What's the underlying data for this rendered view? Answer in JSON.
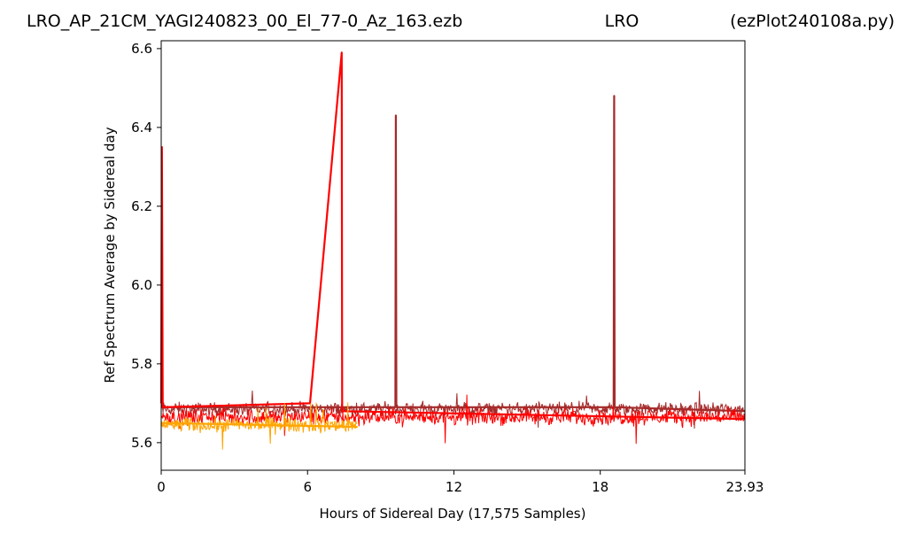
{
  "header": {
    "file_name": "LRO_AP_21CM_YAGI240823_00_El_77-0_Az_163.ezb",
    "station": "LRO",
    "program": "(ezPlot240108a.py)"
  },
  "chart_data": {
    "type": "line",
    "xlabel": "Hours of Sidereal Day  (17,575 Samples)",
    "ylabel": "Ref Spectrum Average by Sidereal day",
    "xlim": [
      0,
      23.93
    ],
    "ylim": [
      5.53,
      6.62
    ],
    "x_ticks": [
      0,
      6,
      12,
      18,
      23.93
    ],
    "x_tick_labels": [
      "0",
      "6",
      "12",
      "18",
      "23.93"
    ],
    "y_ticks": [
      5.6,
      5.8,
      6.0,
      6.2,
      6.4,
      6.6
    ],
    "y_tick_labels": [
      "5.6",
      "5.8",
      "6.0",
      "6.2",
      "6.4",
      "6.6"
    ],
    "grid": false,
    "series": [
      {
        "color": "#a52a2a",
        "noise_band": {
          "x_range": [
            0,
            23.93
          ],
          "center": 5.685,
          "spread": 0.025
        },
        "points": [
          [
            0,
            5.69
          ],
          [
            9.6,
            5.69
          ],
          [
            9.62,
            6.43
          ],
          [
            9.64,
            5.69
          ],
          [
            18.55,
            5.69
          ],
          [
            18.57,
            6.48
          ],
          [
            18.59,
            5.69
          ],
          [
            23.93,
            5.68
          ]
        ]
      },
      {
        "color": "#ff0000",
        "noise_band": {
          "x_range": [
            0,
            23.93
          ],
          "center": 5.665,
          "spread": 0.03
        },
        "points": [
          [
            0,
            5.7
          ],
          [
            0.03,
            6.35
          ],
          [
            0.06,
            5.69
          ],
          [
            6.1,
            5.7
          ],
          [
            7.4,
            6.59
          ],
          [
            7.42,
            5.68
          ],
          [
            23.93,
            5.66
          ]
        ]
      },
      {
        "color": "#ffa500",
        "noise_band": {
          "x_range": [
            0,
            8.05
          ],
          "center": 5.645,
          "spread": 0.028
        },
        "points": [
          [
            0,
            5.65
          ],
          [
            8.05,
            5.64
          ]
        ]
      }
    ]
  }
}
